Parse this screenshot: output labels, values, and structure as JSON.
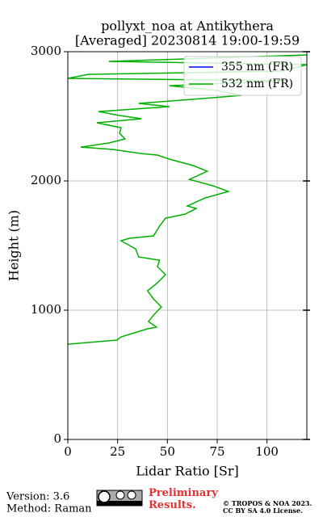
{
  "chart_data": {
    "type": "profile",
    "title": "pollyxt_noa at Antikythera",
    "subtitle": "[Averaged] 20230814 19:00-19:59",
    "xlabel": "Lidar Ratio [Sr]",
    "ylabel": "Height (m)",
    "xlim": [
      0,
      120
    ],
    "xticks": [
      0,
      25,
      50,
      75,
      100
    ],
    "ylim": [
      0,
      3000
    ],
    "yticks": [
      0,
      1000,
      2000,
      3000
    ],
    "grid": true,
    "legend": "upper right",
    "y": [
      737,
      769,
      794,
      856,
      869,
      912,
      962,
      1025,
      1087,
      1150,
      1212,
      1275,
      1337,
      1387,
      1412,
      1475,
      1537,
      1556,
      1575,
      1650,
      1712,
      1744,
      1787,
      1806,
      1869,
      1919,
      1962,
      2012,
      2075,
      2119,
      2169,
      2200,
      2212,
      2244,
      2262,
      2294,
      2325,
      2369,
      2412,
      2450,
      2481,
      2506,
      2537,
      2575,
      2600,
      2637,
      2662,
      2700,
      2737,
      2775,
      2794,
      2825,
      2850,
      2900,
      2925,
      2975
    ],
    "series": [
      {
        "name": "355 nm (FR)",
        "color": "#0000ff",
        "values": [
          null,
          null,
          null,
          null,
          null,
          null,
          null,
          null,
          null,
          null,
          null,
          null,
          null,
          null,
          null,
          null,
          null,
          null,
          null,
          null,
          null,
          null,
          null,
          null,
          null,
          null,
          null,
          null,
          null,
          null,
          null,
          null,
          null,
          null,
          null,
          null,
          null,
          null,
          null,
          null,
          null,
          null,
          null,
          null,
          null,
          null,
          null,
          null,
          null,
          null,
          null,
          null,
          null,
          null,
          null,
          null
        ]
      },
      {
        "name": "532 nm (FR)",
        "color": "#00b000",
        "values": [
          0,
          24.7,
          26.7,
          40,
          44.5,
          40.5,
          43,
          47,
          43,
          40,
          45,
          49,
          45,
          46,
          35.6,
          34,
          26.7,
          30.8,
          43,
          46,
          49,
          59,
          64.4,
          60,
          69,
          80.6,
          73,
          61,
          70,
          63,
          51,
          45,
          37,
          22.7,
          6.5,
          20.6,
          28.7,
          26,
          26.7,
          14.6,
          37,
          26,
          15.4,
          51,
          35.6,
          67,
          87,
          75,
          51,
          112,
          0,
          10.5,
          108,
          120,
          20.6,
          120
        ]
      }
    ]
  },
  "footer": {
    "version": "Version: 3.6",
    "method": "Method: Raman",
    "preliminary": "Preliminary Results.",
    "copyright": "© TROPOS & NOA 2023.",
    "license": "CC BY SA 4.0 License."
  }
}
